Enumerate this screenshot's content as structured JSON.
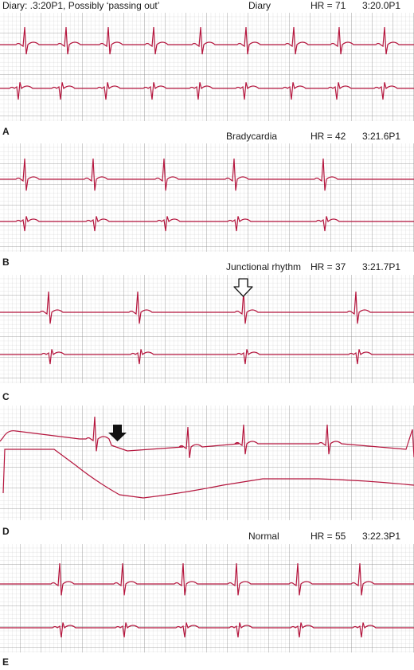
{
  "colors": {
    "trace": "#b5163e",
    "grid": "#a9a9a9",
    "background": "#ffffff"
  },
  "panels": [
    {
      "id": "A",
      "letter": "A",
      "diary": "Diary: .3:20P1, Possibly ‘passing out’",
      "event": "Diary",
      "hr": "HR = 71",
      "time": "3:20.0P1"
    },
    {
      "id": "B",
      "letter": "B",
      "diary": "",
      "event": "Bradycardia",
      "hr": "HR = 42",
      "time": "3:21.6P1"
    },
    {
      "id": "C",
      "letter": "C",
      "diary": "",
      "event": "Junctional rhythm",
      "hr": "HR = 37",
      "time": "3:21.7P1"
    },
    {
      "id": "D",
      "letter": "D",
      "diary": "",
      "event": "",
      "hr": "",
      "time": ""
    },
    {
      "id": "E",
      "letter": "E",
      "diary": "",
      "event": "Normal",
      "hr": "HR = 55",
      "time": "3:22.3P1"
    }
  ],
  "markers": [
    {
      "panel": "C",
      "style": "open-down-arrow"
    },
    {
      "panel": "D",
      "style": "filled-down-arrow"
    }
  ]
}
